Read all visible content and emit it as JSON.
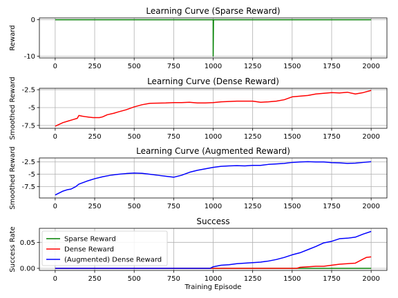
{
  "chart_data": [
    {
      "type": "line",
      "title": "Learning Curve (Sparse Reward)",
      "ylabel": "Reward",
      "xlabel": "",
      "xlim": [
        -100,
        2100
      ],
      "ylim": [
        -10.5,
        0.5
      ],
      "xticks": [
        0,
        250,
        500,
        750,
        1000,
        1250,
        1500,
        1750,
        2000
      ],
      "yticks": [
        0,
        -10
      ],
      "grid": true,
      "series": [
        {
          "name": "",
          "color": "#008000",
          "x": [
            0,
            995,
            1000,
            1000,
            1002,
            2000
          ],
          "y": [
            0,
            0,
            0,
            -10,
            0,
            0
          ]
        }
      ]
    },
    {
      "type": "line",
      "title": "Learning Curve (Dense Reward)",
      "ylabel": "Smoothed Reward",
      "xlabel": "",
      "xlim": [
        -100,
        2100
      ],
      "ylim": [
        -7.9,
        -2.3
      ],
      "xticks": [
        0,
        250,
        500,
        750,
        1000,
        1250,
        1500,
        1750,
        2000
      ],
      "yticks": [
        -2.5,
        -5.0,
        -7.5
      ],
      "grid": true,
      "series": [
        {
          "name": "",
          "color": "#ff0000",
          "x": [
            0,
            20,
            50,
            80,
            110,
            140,
            150,
            170,
            200,
            240,
            280,
            300,
            330,
            370,
            400,
            450,
            500,
            550,
            600,
            700,
            750,
            800,
            850,
            900,
            950,
            1000,
            1050,
            1100,
            1150,
            1200,
            1250,
            1300,
            1350,
            1400,
            1450,
            1500,
            1550,
            1600,
            1650,
            1700,
            1750,
            1800,
            1850,
            1900,
            1950,
            2000
          ],
          "y": [
            -7.6,
            -7.4,
            -7.1,
            -6.9,
            -6.7,
            -6.5,
            -6.1,
            -6.2,
            -6.3,
            -6.4,
            -6.4,
            -6.3,
            -6.0,
            -5.8,
            -5.6,
            -5.3,
            -4.9,
            -4.6,
            -4.4,
            -4.35,
            -4.3,
            -4.3,
            -4.25,
            -4.35,
            -4.35,
            -4.3,
            -4.2,
            -4.15,
            -4.1,
            -4.1,
            -4.1,
            -4.25,
            -4.2,
            -4.1,
            -3.9,
            -3.5,
            -3.4,
            -3.3,
            -3.1,
            -3.0,
            -2.9,
            -2.95,
            -2.85,
            -3.1,
            -2.9,
            -2.6
          ]
        }
      ]
    },
    {
      "type": "line",
      "title": "Learning Curve (Augmented Reward)",
      "ylabel": "Smoothed Reward",
      "xlabel": "",
      "xlim": [
        -100,
        2100
      ],
      "ylim": [
        -9.8,
        -1.7
      ],
      "xticks": [
        0,
        250,
        500,
        750,
        1000,
        1250,
        1500,
        1750,
        2000
      ],
      "yticks": [
        -2.5,
        -5.0,
        -7.5
      ],
      "grid": true,
      "series": [
        {
          "name": "",
          "color": "#0000ff",
          "x": [
            0,
            25,
            50,
            80,
            100,
            130,
            150,
            200,
            250,
            300,
            350,
            400,
            450,
            500,
            550,
            600,
            650,
            700,
            750,
            800,
            850,
            900,
            950,
            1000,
            1050,
            1100,
            1150,
            1200,
            1250,
            1300,
            1350,
            1400,
            1450,
            1500,
            1550,
            1600,
            1650,
            1700,
            1750,
            1800,
            1850,
            1900,
            1950,
            2000
          ],
          "y": [
            -9.2,
            -8.8,
            -8.4,
            -8.1,
            -8.0,
            -7.5,
            -7.0,
            -6.4,
            -5.9,
            -5.5,
            -5.2,
            -5.0,
            -4.85,
            -4.75,
            -4.8,
            -5.0,
            -5.2,
            -5.4,
            -5.6,
            -5.2,
            -4.6,
            -4.2,
            -3.9,
            -3.6,
            -3.4,
            -3.3,
            -3.25,
            -3.3,
            -3.2,
            -3.2,
            -3.0,
            -2.9,
            -2.8,
            -2.6,
            -2.5,
            -2.45,
            -2.5,
            -2.5,
            -2.65,
            -2.7,
            -2.8,
            -2.75,
            -2.6,
            -2.45
          ]
        }
      ]
    },
    {
      "type": "line",
      "title": "Success",
      "ylabel": "Success Rate",
      "xlabel": "Training Episode",
      "xlim": [
        -100,
        2100
      ],
      "ylim": [
        -0.004,
        0.077
      ],
      "xticks": [
        0,
        250,
        500,
        750,
        1000,
        1250,
        1500,
        1750,
        2000
      ],
      "yticks": [
        0.0,
        0.05
      ],
      "ytick_labels": [
        "0.00",
        "0.05"
      ],
      "grid": true,
      "legend": "upper-left",
      "series": [
        {
          "name": "Sparse Reward",
          "color": "#008000",
          "x": [
            0,
            2000
          ],
          "y": [
            0,
            0
          ]
        },
        {
          "name": "Dense Reward",
          "color": "#ff0000",
          "x": [
            0,
            1530,
            1550,
            1600,
            1650,
            1700,
            1750,
            1800,
            1850,
            1900,
            1950,
            1970,
            2000
          ],
          "y": [
            0,
            0,
            0.002,
            0.003,
            0.004,
            0.004,
            0.006,
            0.008,
            0.009,
            0.01,
            0.018,
            0.021,
            0.022
          ]
        },
        {
          "name": "(Augmented) Dense Reward",
          "color": "#0000ff",
          "x": [
            0,
            980,
            1000,
            1050,
            1100,
            1150,
            1200,
            1250,
            1300,
            1350,
            1400,
            1450,
            1500,
            1550,
            1600,
            1650,
            1700,
            1750,
            1800,
            1850,
            1900,
            1950,
            2000
          ],
          "y": [
            0,
            0,
            0.003,
            0.006,
            0.007,
            0.009,
            0.01,
            0.011,
            0.012,
            0.014,
            0.017,
            0.021,
            0.026,
            0.03,
            0.036,
            0.042,
            0.049,
            0.052,
            0.057,
            0.058,
            0.06,
            0.066,
            0.071
          ]
        }
      ]
    }
  ]
}
